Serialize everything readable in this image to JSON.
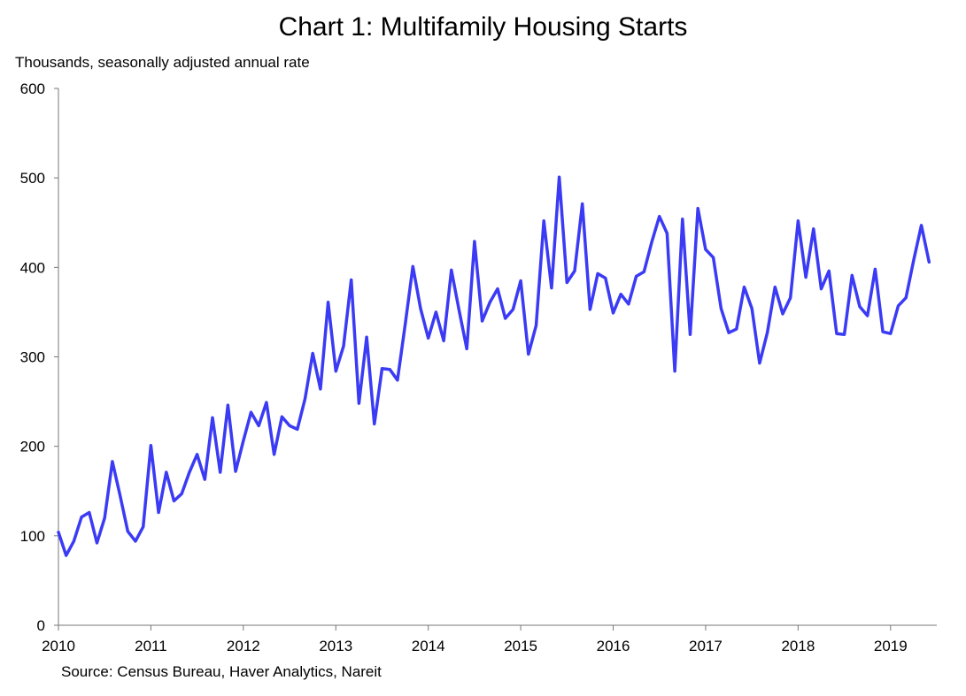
{
  "chart_data": {
    "type": "line",
    "title": "Chart 1: Multifamily Housing Starts",
    "units_label": "Thousands, seasonally adjusted annual rate",
    "source": "Source: Census Bureau, Haver Analytics, Nareit",
    "xlim": [
      2010.0,
      2019.5
    ],
    "ylim": [
      0,
      600
    ],
    "y_ticks": [
      0,
      100,
      200,
      300,
      400,
      500,
      600
    ],
    "x_ticks": [
      2010,
      2011,
      2012,
      2013,
      2014,
      2015,
      2016,
      2017,
      2018,
      2019
    ],
    "grid": false,
    "legend": "none",
    "line_color": "#3b3bf5",
    "series": [
      {
        "start": "2010-01",
        "frequency": "monthly",
        "values": [
          104,
          78,
          94,
          121,
          126,
          92,
          120,
          183,
          145,
          105,
          94,
          110,
          201,
          126,
          171,
          139,
          147,
          171,
          191,
          163,
          232,
          171,
          246,
          172,
          206,
          238,
          223,
          249,
          191,
          233,
          223,
          219,
          253,
          304,
          264,
          361,
          284,
          312,
          386,
          248,
          322,
          225,
          287,
          286,
          274,
          336,
          401,
          354,
          321,
          350,
          318,
          397,
          352,
          309,
          429,
          340,
          361,
          376,
          343,
          353,
          385,
          303,
          335,
          452,
          377,
          501,
          383,
          396,
          471,
          353,
          393,
          388,
          349,
          370,
          359,
          390,
          395,
          428,
          457,
          438,
          284,
          454,
          325,
          466,
          420,
          411,
          354,
          327,
          331,
          378,
          354,
          293,
          327,
          378,
          348,
          366,
          452,
          389,
          443,
          376,
          396,
          326,
          325,
          391,
          356,
          346,
          398,
          328,
          326,
          357,
          366,
          408,
          447,
          406
        ]
      }
    ]
  }
}
